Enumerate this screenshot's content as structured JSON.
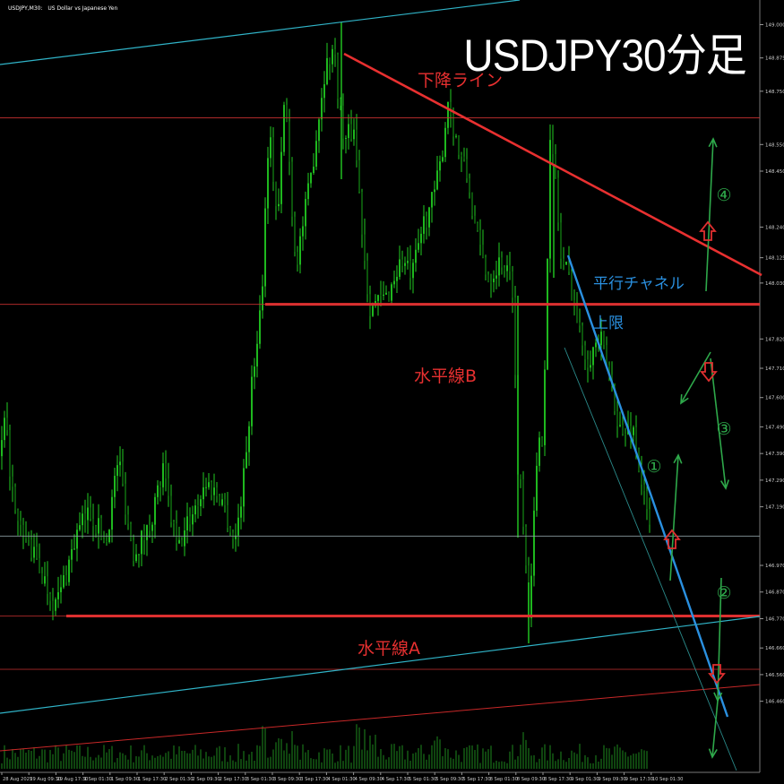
{
  "header": {
    "symbol": "USDJPY,M30:",
    "description": "US Dollar vs Japanese Yen"
  },
  "title": "USDJPY30分足",
  "colors": {
    "background": "#000000",
    "candle": "#22cc22",
    "resistance_red": "#e83030",
    "thin_red": "#c83030",
    "cyan": "#30b4c8",
    "blue": "#2a90e0",
    "arrow_green": "#2ea84a",
    "arrow_red": "#e03030"
  },
  "annotations": {
    "downtrend": "下降ライン",
    "horizontal_b": "水平線B",
    "horizontal_a": "水平線A",
    "channel_upper_1": "平行チャネル",
    "channel_upper_2": "上限",
    "scenarios": [
      "①",
      "②",
      "③",
      "④"
    ]
  },
  "chart_data": {
    "type": "line",
    "subtype": "candlestick-with-volume",
    "title": "USDJPY30分足",
    "symbol": "USDJPY, M30",
    "xlabel": "",
    "ylabel": "",
    "ylim": [
      146.41,
      149.05
    ],
    "y_ticks": [
      149.0,
      148.875,
      148.75,
      148.55,
      148.45,
      148.24,
      148.125,
      148.03,
      147.82,
      147.71,
      147.6,
      147.49,
      147.39,
      147.29,
      147.19,
      146.97,
      146.87,
      146.77,
      146.66,
      146.56,
      146.46
    ],
    "x_ticks": [
      "28 Aug 2025",
      "29 Aug 09:30",
      "29 Aug 17:30",
      "1 Sep 01:30",
      "1 Sep 09:30",
      "1 Sep 17:30",
      "2 Sep 01:30",
      "2 Sep 09:30",
      "2 Sep 17:30",
      "3 Sep 01:30",
      "3 Sep 09:30",
      "3 Sep 17:30",
      "4 Sep 01:30",
      "4 Sep 09:30",
      "4 Sep 17:30",
      "5 Sep 01:30",
      "5 Sep 09:30",
      "5 Sep 17:30",
      "8 Sep 01:30",
      "8 Sep 09:30",
      "8 Sep 17:30",
      "9 Sep 01:30",
      "9 Sep 09:30",
      "9 Sep 17:30",
      "10 Sep 01:30"
    ],
    "price_path": [
      [
        0,
        147.38
      ],
      [
        6,
        147.5
      ],
      [
        18,
        147.12
      ],
      [
        32,
        147.05
      ],
      [
        45,
        146.95
      ],
      [
        62,
        146.82
      ],
      [
        70,
        146.9
      ],
      [
        85,
        147.08
      ],
      [
        100,
        147.18
      ],
      [
        118,
        147.05
      ],
      [
        132,
        147.38
      ],
      [
        148,
        147.02
      ],
      [
        165,
        147.1
      ],
      [
        182,
        147.32
      ],
      [
        198,
        147.02
      ],
      [
        212,
        147.15
      ],
      [
        230,
        147.28
      ],
      [
        248,
        147.22
      ],
      [
        262,
        147.05
      ],
      [
        272,
        147.3
      ],
      [
        282,
        147.68
      ],
      [
        292,
        147.98
      ],
      [
        300,
        148.62
      ],
      [
        310,
        148.25
      ],
      [
        318,
        148.75
      ],
      [
        330,
        148.1
      ],
      [
        345,
        148.38
      ],
      [
        362,
        148.82
      ],
      [
        372,
        148.92
      ],
      [
        384,
        148.55
      ],
      [
        395,
        148.62
      ],
      [
        405,
        148.2
      ],
      [
        412,
        147.95
      ],
      [
        420,
        147.95
      ],
      [
        432,
        147.98
      ],
      [
        448,
        148.12
      ],
      [
        460,
        148.05
      ],
      [
        472,
        148.25
      ],
      [
        484,
        148.35
      ],
      [
        492,
        148.48
      ],
      [
        500,
        148.72
      ],
      [
        512,
        148.52
      ],
      [
        522,
        148.42
      ],
      [
        532,
        148.2
      ],
      [
        545,
        148.05
      ],
      [
        560,
        148.12
      ],
      [
        572,
        148.02
      ],
      [
        578,
        147.32
      ],
      [
        582,
        147.28
      ],
      [
        590,
        146.8
      ],
      [
        600,
        147.38
      ],
      [
        606,
        147.48
      ],
      [
        614,
        148.55
      ],
      [
        620,
        148.42
      ],
      [
        626,
        148.12
      ],
      [
        636,
        148.05
      ],
      [
        646,
        147.85
      ],
      [
        656,
        147.75
      ],
      [
        670,
        147.82
      ],
      [
        682,
        147.65
      ],
      [
        694,
        147.45
      ],
      [
        706,
        147.5
      ],
      [
        716,
        147.28
      ],
      [
        726,
        147.08
      ]
    ],
    "horizontal_levels": [
      {
        "name": "水平線B",
        "value": 147.95,
        "style": "bold"
      },
      {
        "name": "水平線A",
        "value": 146.78,
        "style": "bold"
      },
      {
        "name": "",
        "value": 148.65,
        "style": "thin"
      },
      {
        "name": "",
        "value": 146.58,
        "style": "thin"
      },
      {
        "name": "",
        "value": 147.08,
        "style": "thin-grey"
      }
    ],
    "trendlines": [
      {
        "name": "下降ライン"
      },
      {
        "name": "平行チャネル上限"
      }
    ],
    "grid": false,
    "legend": "none"
  }
}
